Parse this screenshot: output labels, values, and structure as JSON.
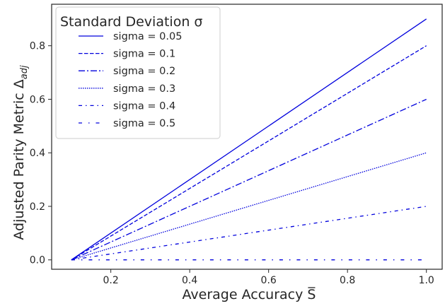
{
  "chart_data": {
    "type": "line",
    "xlabel_main": "Average Accuracy ",
    "xlabel_symbol": "S",
    "ylabel_main": "Adjusted Parity Metric Δ",
    "ylabel_sub": "adj",
    "xlim": [
      0.05,
      1.04
    ],
    "ylim": [
      -0.035,
      0.955
    ],
    "xticks": [
      0.2,
      0.4,
      0.6,
      0.8,
      1.0
    ],
    "xtick_labels": [
      "0.2",
      "0.4",
      "0.6",
      "0.8",
      "1.0"
    ],
    "yticks": [
      0.0,
      0.2,
      0.4,
      0.6,
      0.8
    ],
    "ytick_labels": [
      "0.0",
      "0.2",
      "0.4",
      "0.6",
      "0.8"
    ],
    "grid": false,
    "legend_title": "Standard Deviation σ",
    "legend_position": "upper-left",
    "line_color": "#0000dd",
    "series": [
      {
        "name": "sigma = 0.05",
        "dash": "solid",
        "x": [
          0.1,
          1.0
        ],
        "y": [
          0.0,
          0.9
        ]
      },
      {
        "name": "sigma = 0.1",
        "dash": "dashed",
        "x": [
          0.1,
          1.0
        ],
        "y": [
          0.0,
          0.8
        ]
      },
      {
        "name": "sigma = 0.2",
        "dash": "dashdot",
        "x": [
          0.1,
          1.0
        ],
        "y": [
          0.0,
          0.6
        ]
      },
      {
        "name": "sigma = 0.3",
        "dash": "dotted",
        "x": [
          0.1,
          1.0
        ],
        "y": [
          0.0,
          0.4
        ]
      },
      {
        "name": "sigma = 0.4",
        "dash": "dashdotsparse",
        "x": [
          0.1,
          1.0
        ],
        "y": [
          0.0,
          0.2
        ]
      },
      {
        "name": "sigma = 0.5",
        "dash": "dashdotloose",
        "x": [
          0.1,
          1.0
        ],
        "y": [
          0.0,
          0.0
        ]
      }
    ]
  }
}
